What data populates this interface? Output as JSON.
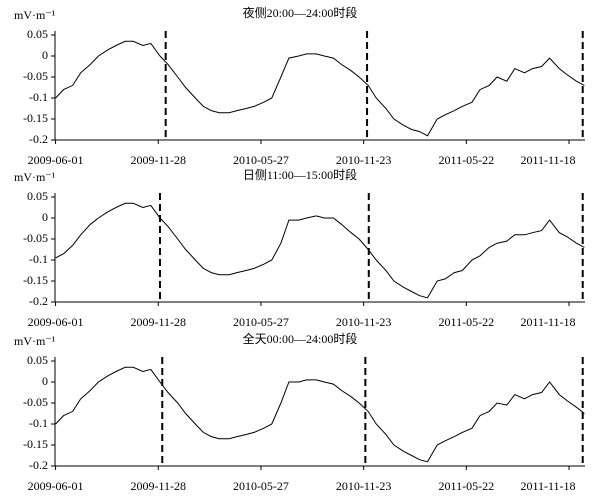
{
  "chart_data": [
    {
      "type": "line",
      "title": "夜侧20:00—24:00时段",
      "ylabel": "mV·m⁻¹",
      "color": "#000000",
      "x": [
        "2009-06-01",
        "2009-06-15",
        "2009-07-01",
        "2009-07-15",
        "2009-08-01",
        "2009-08-15",
        "2009-09-01",
        "2009-09-15",
        "2009-10-01",
        "2009-10-15",
        "2009-11-01",
        "2009-11-15",
        "2009-12-01",
        "2009-12-15",
        "2010-01-01",
        "2010-01-15",
        "2010-02-01",
        "2010-02-15",
        "2010-03-01",
        "2010-03-15",
        "2010-04-01",
        "2010-04-15",
        "2010-05-01",
        "2010-05-15",
        "2010-06-01",
        "2010-06-15",
        "2010-07-01",
        "2010-07-15",
        "2010-08-01",
        "2010-08-15",
        "2010-09-01",
        "2010-09-15",
        "2010-10-01",
        "2010-10-15",
        "2010-11-01",
        "2010-11-15",
        "2010-12-01",
        "2010-12-15",
        "2011-01-01",
        "2011-01-15",
        "2011-02-01",
        "2011-02-15",
        "2011-03-01",
        "2011-03-15",
        "2011-04-01",
        "2011-04-15",
        "2011-05-01",
        "2011-05-15",
        "2011-06-01",
        "2011-06-15",
        "2011-07-01",
        "2011-07-15",
        "2011-08-01",
        "2011-08-15",
        "2011-09-01",
        "2011-09-15",
        "2011-10-01",
        "2011-10-15",
        "2011-11-01",
        "2011-11-15",
        "2011-12-01",
        "2011-12-15"
      ],
      "values": [
        -0.1,
        -0.08,
        -0.07,
        -0.04,
        -0.02,
        0.0,
        0.015,
        0.025,
        0.035,
        0.035,
        0.025,
        0.03,
        0.0,
        -0.02,
        -0.05,
        -0.075,
        -0.1,
        -0.12,
        -0.13,
        -0.135,
        -0.135,
        -0.13,
        -0.125,
        -0.12,
        -0.11,
        -0.1,
        -0.05,
        -0.005,
        0.0,
        0.005,
        0.005,
        0.0,
        -0.005,
        -0.02,
        -0.035,
        -0.05,
        -0.07,
        -0.1,
        -0.125,
        -0.15,
        -0.165,
        -0.175,
        -0.18,
        -0.19,
        -0.15,
        -0.14,
        -0.13,
        -0.12,
        -0.11,
        -0.08,
        -0.07,
        -0.05,
        -0.06,
        -0.03,
        -0.04,
        -0.03,
        -0.025,
        -0.005,
        -0.03,
        -0.045,
        -0.06,
        -0.07
      ],
      "markers": [
        "2009-12-11",
        "2010-11-29",
        "2011-12-12"
      ],
      "xlim": [
        "2009-05-31",
        "2011-12-16"
      ],
      "xticks": [
        "2009-06-01",
        "2009-11-28",
        "2010-05-27",
        "2010-11-23",
        "2011-05-22",
        "2011-11-18"
      ],
      "ylim": [
        -0.2,
        0.05
      ],
      "yticks": [
        0.05,
        0,
        -0.05,
        -0.1,
        -0.15,
        -0.2
      ]
    },
    {
      "type": "line",
      "title": "日侧11:00—15:00时段",
      "ylabel": "mV·m⁻¹",
      "color": "#000000",
      "x": [
        "2009-06-01",
        "2009-06-15",
        "2009-07-01",
        "2009-07-15",
        "2009-08-01",
        "2009-08-15",
        "2009-09-01",
        "2009-09-15",
        "2009-10-01",
        "2009-10-15",
        "2009-11-01",
        "2009-11-15",
        "2009-12-01",
        "2009-12-15",
        "2010-01-01",
        "2010-01-15",
        "2010-02-01",
        "2010-02-15",
        "2010-03-01",
        "2010-03-15",
        "2010-04-01",
        "2010-04-15",
        "2010-05-01",
        "2010-05-15",
        "2010-06-01",
        "2010-06-15",
        "2010-07-01",
        "2010-07-15",
        "2010-08-01",
        "2010-08-15",
        "2010-09-01",
        "2010-09-15",
        "2010-10-01",
        "2010-10-15",
        "2010-11-01",
        "2010-11-15",
        "2010-12-01",
        "2010-12-15",
        "2011-01-01",
        "2011-01-15",
        "2011-02-01",
        "2011-02-15",
        "2011-03-01",
        "2011-03-15",
        "2011-04-01",
        "2011-04-15",
        "2011-05-01",
        "2011-05-15",
        "2011-06-01",
        "2011-06-15",
        "2011-07-01",
        "2011-07-15",
        "2011-08-01",
        "2011-08-15",
        "2011-09-01",
        "2011-09-15",
        "2011-10-01",
        "2011-10-15",
        "2011-11-01",
        "2011-11-15",
        "2011-12-01",
        "2011-12-15"
      ],
      "values": [
        -0.095,
        -0.085,
        -0.065,
        -0.04,
        -0.015,
        0.0,
        0.015,
        0.025,
        0.035,
        0.035,
        0.025,
        0.03,
        0.0,
        -0.02,
        -0.05,
        -0.075,
        -0.1,
        -0.12,
        -0.13,
        -0.135,
        -0.135,
        -0.13,
        -0.125,
        -0.12,
        -0.11,
        -0.1,
        -0.06,
        -0.005,
        -0.005,
        0.0,
        0.005,
        0.0,
        0.0,
        -0.015,
        -0.035,
        -0.05,
        -0.075,
        -0.1,
        -0.125,
        -0.15,
        -0.165,
        -0.175,
        -0.185,
        -0.19,
        -0.15,
        -0.145,
        -0.13,
        -0.125,
        -0.1,
        -0.09,
        -0.07,
        -0.06,
        -0.055,
        -0.04,
        -0.04,
        -0.035,
        -0.03,
        -0.005,
        -0.035,
        -0.045,
        -0.06,
        -0.07
      ],
      "markers": [
        "2009-12-01",
        "2010-12-02",
        "2011-12-12"
      ],
      "xlim": [
        "2009-05-31",
        "2011-12-16"
      ],
      "xticks": [
        "2009-06-01",
        "2009-11-28",
        "2010-05-27",
        "2010-11-23",
        "2011-05-22",
        "2011-11-18"
      ],
      "ylim": [
        -0.2,
        0.05
      ],
      "yticks": [
        0.05,
        0,
        -0.05,
        -0.1,
        -0.15,
        -0.2
      ]
    },
    {
      "type": "line",
      "title": "全天00:00—24:00时段",
      "ylabel": "mV·m⁻¹",
      "color": "#000000",
      "x": [
        "2009-06-01",
        "2009-06-15",
        "2009-07-01",
        "2009-07-15",
        "2009-08-01",
        "2009-08-15",
        "2009-09-01",
        "2009-09-15",
        "2009-10-01",
        "2009-10-15",
        "2009-11-01",
        "2009-11-15",
        "2009-12-01",
        "2009-12-15",
        "2010-01-01",
        "2010-01-15",
        "2010-02-01",
        "2010-02-15",
        "2010-03-01",
        "2010-03-15",
        "2010-04-01",
        "2010-04-15",
        "2010-05-01",
        "2010-05-15",
        "2010-06-01",
        "2010-06-15",
        "2010-07-01",
        "2010-07-15",
        "2010-08-01",
        "2010-08-15",
        "2010-09-01",
        "2010-09-15",
        "2010-10-01",
        "2010-10-15",
        "2010-11-01",
        "2010-11-15",
        "2010-12-01",
        "2010-12-15",
        "2011-01-01",
        "2011-01-15",
        "2011-02-01",
        "2011-02-15",
        "2011-03-01",
        "2011-03-15",
        "2011-04-01",
        "2011-04-15",
        "2011-05-01",
        "2011-05-15",
        "2011-06-01",
        "2011-06-15",
        "2011-07-01",
        "2011-07-15",
        "2011-08-01",
        "2011-08-15",
        "2011-09-01",
        "2011-09-15",
        "2011-10-01",
        "2011-10-15",
        "2011-11-01",
        "2011-11-15",
        "2011-12-01",
        "2011-12-15"
      ],
      "values": [
        -0.1,
        -0.08,
        -0.07,
        -0.04,
        -0.02,
        0.0,
        0.015,
        0.025,
        0.035,
        0.035,
        0.025,
        0.03,
        0.0,
        -0.025,
        -0.05,
        -0.075,
        -0.1,
        -0.12,
        -0.13,
        -0.135,
        -0.135,
        -0.13,
        -0.125,
        -0.12,
        -0.11,
        -0.1,
        -0.05,
        0.0,
        0.0,
        0.005,
        0.005,
        0.0,
        -0.005,
        -0.02,
        -0.035,
        -0.05,
        -0.07,
        -0.1,
        -0.125,
        -0.15,
        -0.165,
        -0.175,
        -0.185,
        -0.19,
        -0.15,
        -0.14,
        -0.13,
        -0.12,
        -0.11,
        -0.08,
        -0.07,
        -0.05,
        -0.055,
        -0.03,
        -0.04,
        -0.03,
        -0.025,
        0.0,
        -0.03,
        -0.045,
        -0.06,
        -0.075
      ],
      "markers": [
        "2009-12-05",
        "2010-11-26",
        "2011-12-12"
      ],
      "xlim": [
        "2009-05-31",
        "2011-12-16"
      ],
      "xticks": [
        "2009-06-01",
        "2009-11-28",
        "2010-05-27",
        "2010-11-23",
        "2011-05-22",
        "2011-11-18"
      ],
      "ylim": [
        -0.2,
        0.05
      ],
      "yticks": [
        0.05,
        0,
        -0.05,
        -0.1,
        -0.15,
        -0.2
      ]
    }
  ]
}
